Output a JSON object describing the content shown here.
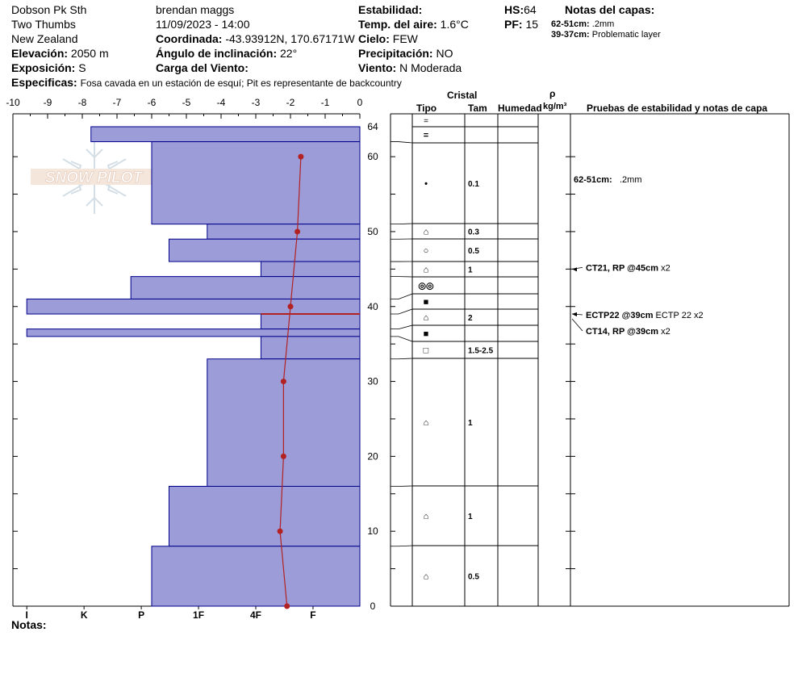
{
  "header": {
    "location": "Dobson Pk Sth",
    "sub_location": "Two Thumbs",
    "country": "New Zealand",
    "elevation_label": "Elevación:",
    "elevation_value": "2050 m",
    "aspect_label": "Exposición:",
    "aspect_value": "S",
    "observer": "brendan maggs",
    "datetime": "11/09/2023 - 14:00",
    "coord_label": "Coordinada:",
    "coord_value": "-43.93912N, 170.67171W",
    "slope_label": "Ángulo de inclinación:",
    "slope_value": "22°",
    "wind_load_label": "Carga del Viento:",
    "wind_load_value": "",
    "stability_label": "Estabilidad:",
    "stability_value": "",
    "air_temp_label": "Temp. del aire:",
    "air_temp_value": "1.6°C",
    "sky_label": "Cielo:",
    "sky_value": "FEW",
    "precip_label": "Precipitación:",
    "precip_value": "NO",
    "wind_label": "Viento:",
    "wind_value": "N Moderada",
    "hs_label": "HS:",
    "hs_value": "64",
    "pf_label": "PF:",
    "pf_value": "15",
    "layer_notes_title": "Notas del capas:",
    "layer_notes": [
      {
        "range": "62-51cm:",
        "text": ".2mm"
      },
      {
        "range": "39-37cm:",
        "text": "Problematic layer"
      }
    ],
    "specifics_label": "Especificas:",
    "specifics_value": "Fosa cavada en un estación de esquí; Pit es representante de backcountry"
  },
  "footer": {
    "notes_label": "Notas:"
  },
  "logo_text": "SNOW PILOT",
  "columns": {
    "crystal": "Cristal",
    "type": "Tipo",
    "size": "Tam",
    "humidity": "Humedad",
    "rho": "ρ",
    "density_unit": "kg/m³",
    "tests": "Pruebas de estabilidad y notas de capa"
  },
  "colors": {
    "bar_fill": "#9c9cd8",
    "bar_stroke": "#00008b",
    "temp": "#b22222"
  },
  "chart_data": {
    "type": "bar",
    "orientation": "horizontal",
    "title": "",
    "ylabel": "",
    "ylim": [
      0,
      64
    ],
    "y_ticks": [
      0,
      10,
      20,
      30,
      40,
      50,
      60,
      64
    ],
    "top_temp_axis": {
      "ticks": [
        -10,
        -9,
        -8,
        -7,
        -6,
        -5,
        -4,
        -3,
        -2,
        -1,
        0
      ],
      "range": [
        -10,
        0
      ]
    },
    "hardness_axis": {
      "ticks": [
        "I",
        "K",
        "P",
        "1F",
        "4F",
        "F"
      ]
    },
    "layers": [
      {
        "top": 64,
        "bottom": 62,
        "hardness_value": 7.75,
        "type": "=",
        "size": ""
      },
      {
        "top": 62,
        "bottom": 51,
        "hardness_value": 6.0,
        "type": "•",
        "size": "0.1"
      },
      {
        "top": 51,
        "bottom": 49,
        "hardness_value": 4.4,
        "type": "⌂",
        "size": "0.3"
      },
      {
        "top": 49,
        "bottom": 46,
        "hardness_value": 5.5,
        "type": "○",
        "size": "0.5"
      },
      {
        "top": 46,
        "bottom": 44,
        "hardness_value": 2.85,
        "type": "⌂",
        "size": "1"
      },
      {
        "top": 44,
        "bottom": 41,
        "hardness_value": 6.6,
        "type": "◎◎",
        "size": ""
      },
      {
        "top": 41,
        "bottom": 39,
        "hardness_value": 9.6,
        "type": "■",
        "size": ""
      },
      {
        "top": 39,
        "bottom": 37,
        "hardness_value": 2.85,
        "type": "⌂",
        "size": "2"
      },
      {
        "top": 37,
        "bottom": 36,
        "hardness_value": 9.6,
        "type": "■",
        "size": ""
      },
      {
        "top": 36,
        "bottom": 33,
        "hardness_value": 2.85,
        "type": "□",
        "size": "1.5-2.5"
      },
      {
        "top": 33,
        "bottom": 16,
        "hardness_value": 4.4,
        "type": "⌂",
        "size": "1"
      },
      {
        "top": 16,
        "bottom": 8,
        "hardness_value": 5.5,
        "type": "⌂",
        "size": "1"
      },
      {
        "top": 8,
        "bottom": 0,
        "hardness_value": 6.0,
        "type": "⌂",
        "size": "0.5"
      }
    ],
    "temperature_profile": [
      {
        "depth": 60,
        "temp": -1.7
      },
      {
        "depth": 50,
        "temp": -1.8
      },
      {
        "depth": 40,
        "temp": -2.0
      },
      {
        "depth": 30,
        "temp": -2.2
      },
      {
        "depth": 20,
        "temp": -2.2
      },
      {
        "depth": 10,
        "temp": -2.3
      },
      {
        "depth": 0,
        "temp": -2.1
      }
    ],
    "marker_line_depth": 39,
    "tests": [
      {
        "depth": 45,
        "label": "CT21, RP @45cm",
        "extra": "x2"
      },
      {
        "depth": 39,
        "label": "ECTP22 @39cm",
        "extra": "ECTP 22 x2"
      },
      {
        "depth": 39,
        "label": "CT14, RP @39cm",
        "extra": "x2"
      }
    ],
    "layer_note_depth": 57,
    "layer_note_label": "62-51cm:",
    "layer_note_text": ".2mm"
  }
}
